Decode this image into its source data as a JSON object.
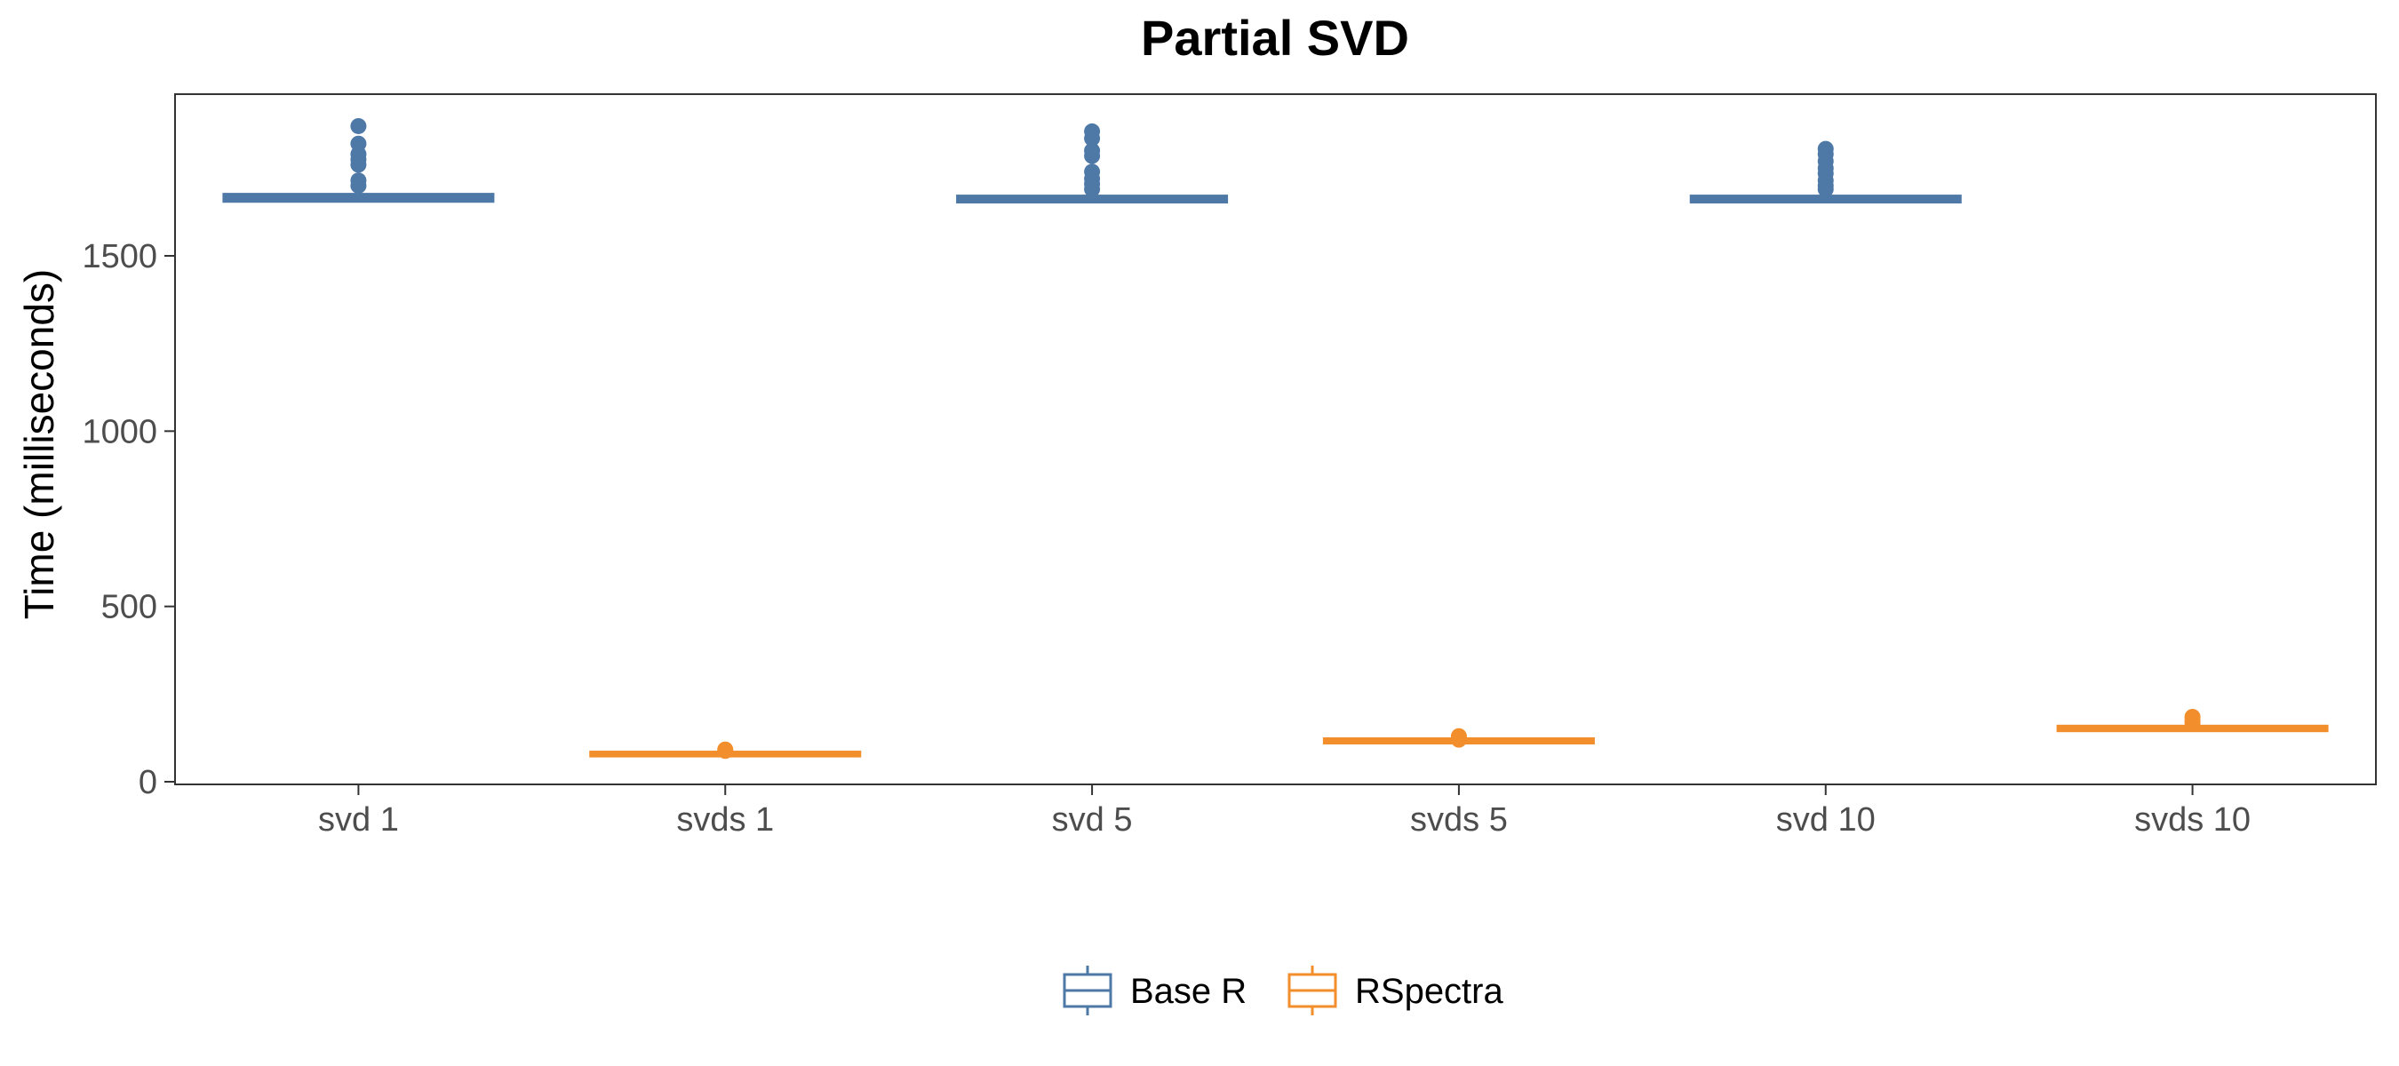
{
  "chart_data": {
    "type": "box",
    "title": "Partial SVD",
    "xlabel": "",
    "ylabel": "Time (milliseconds)",
    "ylim": [
      0,
      1950
    ],
    "yticks": [
      0,
      500,
      1000,
      1500
    ],
    "categories": [
      "svd 1",
      "svds 1",
      "svd 5",
      "svds 5",
      "svd 10",
      "svds 10"
    ],
    "groups": [
      "Base R",
      "RSpectra",
      "Base R",
      "RSpectra",
      "Base R",
      "RSpectra"
    ],
    "boxes": [
      {
        "category": "svd 1",
        "series": "Base R",
        "q1": 1659,
        "median": 1664,
        "q3": 1672,
        "whisker_low": 1655,
        "whisker_high": 1680,
        "outliers": [
          1870,
          1820,
          1790,
          1775,
          1760,
          1715,
          1700
        ]
      },
      {
        "category": "svds 1",
        "series": "RSpectra",
        "q1": 77,
        "median": 79,
        "q3": 81,
        "whisker_low": 75,
        "whisker_high": 84,
        "outliers": [
          92,
          88
        ]
      },
      {
        "category": "svd 5",
        "series": "Base R",
        "q1": 1657,
        "median": 1661,
        "q3": 1667,
        "whisker_low": 1652,
        "whisker_high": 1675,
        "outliers": [
          1855,
          1835,
          1800,
          1785,
          1740,
          1720,
          1705,
          1690
        ]
      },
      {
        "category": "svds 5",
        "series": "RSpectra",
        "q1": 114,
        "median": 116,
        "q3": 119,
        "whisker_low": 112,
        "whisker_high": 123,
        "outliers": [
          130,
          126,
          120
        ]
      },
      {
        "category": "svd 10",
        "series": "Base R",
        "q1": 1657,
        "median": 1662,
        "q3": 1667,
        "whisker_low": 1652,
        "whisker_high": 1675,
        "outliers": [
          1805,
          1790,
          1770,
          1750,
          1735,
          1715,
          1700,
          1690
        ]
      },
      {
        "category": "svds 10",
        "series": "RSpectra",
        "q1": 149,
        "median": 152,
        "q3": 155,
        "whisker_low": 146,
        "whisker_high": 160,
        "outliers": [
          185,
          175,
          168
        ]
      }
    ],
    "series": [
      {
        "name": "Base R",
        "color": "#4e79a7"
      },
      {
        "name": "RSpectra",
        "color": "#f28e2b"
      }
    ],
    "grid": false,
    "legend_position": "bottom"
  }
}
